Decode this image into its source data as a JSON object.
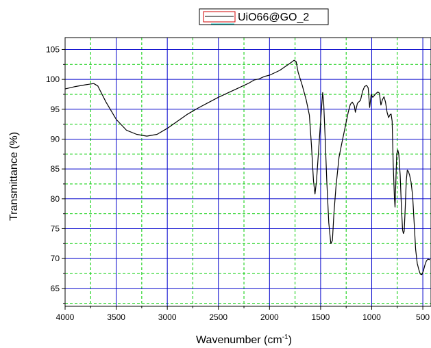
{
  "chart_data": {
    "type": "line",
    "xlabel": "Wavenumber (cm",
    "xlabel_sup": "-1",
    "xlabel_end": ")",
    "ylabel": "Transmittance (%)",
    "xlim": [
      4000,
      420
    ],
    "ylim": [
      62,
      107
    ],
    "x_reversed": true,
    "x_ticks": [
      4000,
      3500,
      3000,
      2500,
      2000,
      1500,
      1000,
      500
    ],
    "y_ticks": [
      65,
      70,
      75,
      80,
      85,
      90,
      95,
      100,
      105
    ],
    "grid": true,
    "grid_major_color": "#0000cc",
    "grid_minor_color": "#00cc00",
    "legend_position": "top",
    "series": [
      {
        "name": "UiO66@GO_2",
        "color": "#000000",
        "points": [
          [
            4000,
            98.4
          ],
          [
            3900,
            98.8
          ],
          [
            3800,
            99.1
          ],
          [
            3720,
            99.3
          ],
          [
            3680,
            98.9
          ],
          [
            3600,
            96.2
          ],
          [
            3500,
            93.3
          ],
          [
            3400,
            91.5
          ],
          [
            3300,
            90.8
          ],
          [
            3200,
            90.5
          ],
          [
            3100,
            90.8
          ],
          [
            3000,
            91.8
          ],
          [
            2900,
            93.0
          ],
          [
            2800,
            94.2
          ],
          [
            2700,
            95.2
          ],
          [
            2600,
            96.1
          ],
          [
            2500,
            97.0
          ],
          [
            2400,
            97.8
          ],
          [
            2300,
            98.6
          ],
          [
            2200,
            99.4
          ],
          [
            2150,
            99.9
          ],
          [
            2100,
            100.1
          ],
          [
            2050,
            100.5
          ],
          [
            2000,
            100.7
          ],
          [
            1950,
            101.1
          ],
          [
            1900,
            101.5
          ],
          [
            1850,
            102.1
          ],
          [
            1800,
            102.7
          ],
          [
            1760,
            103.2
          ],
          [
            1740,
            103.0
          ],
          [
            1720,
            101.2
          ],
          [
            1680,
            99.0
          ],
          [
            1640,
            96.5
          ],
          [
            1610,
            94.0
          ],
          [
            1590,
            89.0
          ],
          [
            1570,
            83.0
          ],
          [
            1555,
            80.8
          ],
          [
            1540,
            83.0
          ],
          [
            1520,
            88.0
          ],
          [
            1500,
            93.0
          ],
          [
            1490,
            95.5
          ],
          [
            1480,
            97.8
          ],
          [
            1470,
            96.0
          ],
          [
            1455,
            90.0
          ],
          [
            1440,
            83.0
          ],
          [
            1420,
            76.0
          ],
          [
            1400,
            72.5
          ],
          [
            1385,
            73.0
          ],
          [
            1370,
            77.5
          ],
          [
            1350,
            82.0
          ],
          [
            1320,
            87.0
          ],
          [
            1290,
            89.5
          ],
          [
            1260,
            92.0
          ],
          [
            1230,
            94.5
          ],
          [
            1210,
            95.8
          ],
          [
            1190,
            96.2
          ],
          [
            1170,
            95.6
          ],
          [
            1160,
            94.5
          ],
          [
            1140,
            96.0
          ],
          [
            1110,
            96.5
          ],
          [
            1090,
            98.0
          ],
          [
            1070,
            98.8
          ],
          [
            1050,
            99.0
          ],
          [
            1035,
            98.6
          ],
          [
            1020,
            95.3
          ],
          [
            1005,
            97.5
          ],
          [
            990,
            97.0
          ],
          [
            975,
            97.3
          ],
          [
            960,
            97.6
          ],
          [
            940,
            97.9
          ],
          [
            925,
            97.7
          ],
          [
            910,
            95.7
          ],
          [
            895,
            96.6
          ],
          [
            880,
            97.1
          ],
          [
            865,
            96.2
          ],
          [
            850,
            94.5
          ],
          [
            835,
            93.6
          ],
          [
            820,
            94.1
          ],
          [
            810,
            94.2
          ],
          [
            800,
            93.0
          ],
          [
            790,
            86.0
          ],
          [
            778,
            80.2
          ],
          [
            772,
            78.6
          ],
          [
            762,
            84.0
          ],
          [
            755,
            87.5
          ],
          [
            745,
            88.2
          ],
          [
            735,
            87.5
          ],
          [
            722,
            84.0
          ],
          [
            710,
            79.0
          ],
          [
            698,
            74.8
          ],
          [
            690,
            74.2
          ],
          [
            682,
            74.6
          ],
          [
            672,
            78.5
          ],
          [
            662,
            83.0
          ],
          [
            652,
            84.8
          ],
          [
            642,
            84.6
          ],
          [
            630,
            84.0
          ],
          [
            615,
            82.8
          ],
          [
            600,
            80.5
          ],
          [
            585,
            76.0
          ],
          [
            570,
            71.5
          ],
          [
            555,
            69.2
          ],
          [
            540,
            68.2
          ],
          [
            525,
            67.4
          ],
          [
            510,
            67.3
          ],
          [
            495,
            67.9
          ],
          [
            480,
            68.9
          ],
          [
            465,
            69.6
          ],
          [
            450,
            69.9
          ],
          [
            430,
            69.8
          ]
        ]
      }
    ]
  }
}
